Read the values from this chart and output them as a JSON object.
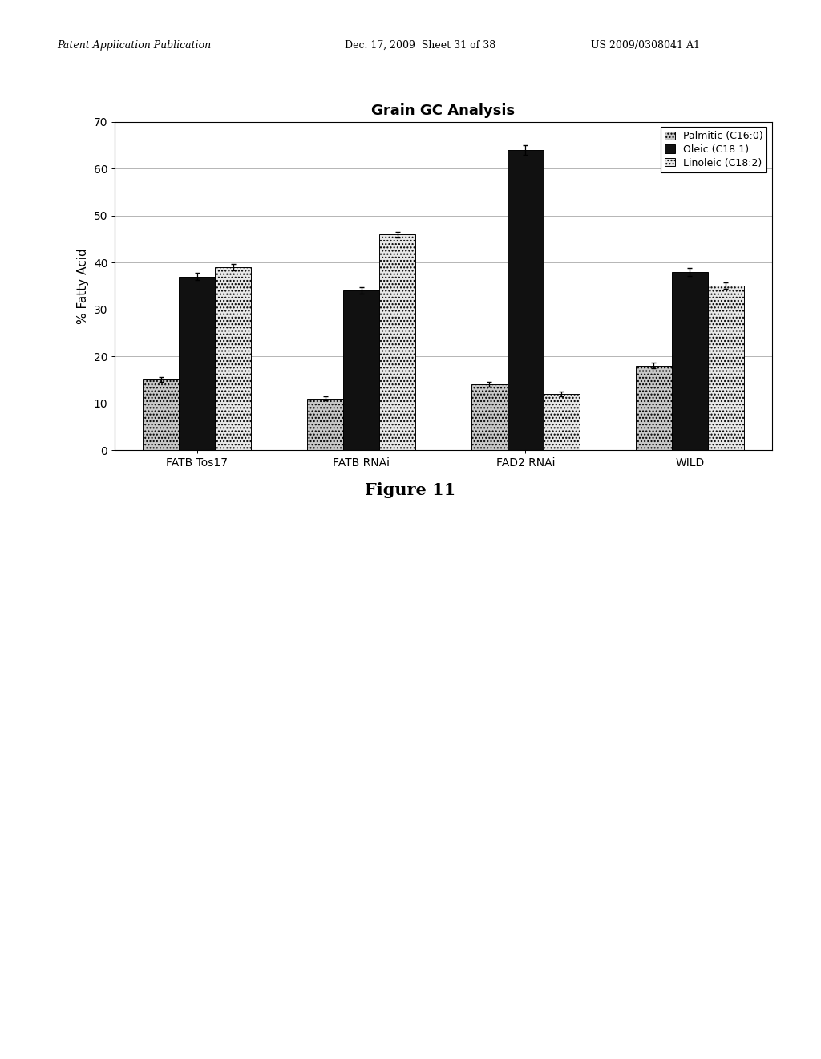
{
  "title": "Grain GC Analysis",
  "ylabel": "% Fatty Acid",
  "figure_caption": "Figure 11",
  "groups": [
    "FATB Tos17",
    "FATB RNAi",
    "FAD2 RNAi",
    "WILD"
  ],
  "series": [
    {
      "name": "Palmitic (C16:0)",
      "color": "#c8c8c8",
      "hatch": "....",
      "values": [
        15,
        11,
        14,
        18
      ],
      "errors": [
        0.5,
        0.4,
        0.5,
        0.6
      ]
    },
    {
      "name": "Oleic (C18:1)",
      "color": "#111111",
      "hatch": "",
      "values": [
        37,
        34,
        64,
        38
      ],
      "errors": [
        0.8,
        0.7,
        1.0,
        0.8
      ]
    },
    {
      "name": "Linoleic (C18:2)",
      "color": "#e8e8e8",
      "hatch": "....",
      "values": [
        39,
        46,
        12,
        35
      ],
      "errors": [
        0.7,
        0.6,
        0.5,
        0.7
      ]
    }
  ],
  "ylim": [
    0,
    70
  ],
  "yticks": [
    0,
    10,
    20,
    30,
    40,
    50,
    60,
    70
  ],
  "bar_width": 0.22,
  "background_color": "#ffffff",
  "plot_bg_color": "#ffffff",
  "grid_color": "#999999",
  "header_left": "Patent Application Publication",
  "header_mid": "Dec. 17, 2009  Sheet 31 of 38",
  "header_right": "US 2009/0308041 A1",
  "title_fontsize": 13,
  "axis_label_fontsize": 11,
  "tick_fontsize": 10,
  "legend_fontsize": 9
}
